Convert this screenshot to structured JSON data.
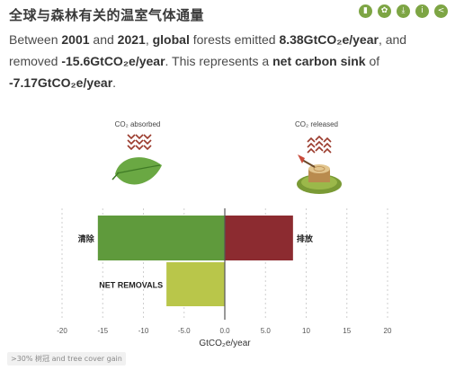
{
  "header": {
    "title": "全球与森林有关的温室气体通量",
    "toolbar": [
      {
        "icon": "book-icon",
        "glyph": "▮"
      },
      {
        "icon": "gear-icon",
        "glyph": "✿"
      },
      {
        "icon": "download-icon",
        "glyph": "⤓"
      },
      {
        "icon": "info-icon",
        "glyph": "i"
      },
      {
        "icon": "share-icon",
        "glyph": "<"
      }
    ]
  },
  "summary": {
    "t1": "Between ",
    "year_start": "2001",
    "t2": " and ",
    "year_end": "2021",
    "t3": ", ",
    "scope": "global",
    "t4": " forests emitted ",
    "emitted": "8.38GtCO₂e/year",
    "t5": ", and removed ",
    "removed": "-15.6GtCO₂e/year",
    "t6": ". This represents a ",
    "sink_label": "net carbon sink",
    "t7": " of ",
    "net": "-7.17GtCO₂e/year",
    "t8": "."
  },
  "illustrations": {
    "absorbed_label": "CO₂ absorbed",
    "released_label": "CO₂ released"
  },
  "chart_data": {
    "type": "bar",
    "orientation": "horizontal",
    "xlabel": "GtCO₂e/year",
    "xlim": [
      -20,
      20
    ],
    "xticks": [
      -20,
      -15,
      -10,
      -5,
      0,
      5,
      10,
      15,
      20
    ],
    "xtick_labels": [
      "-20",
      "-15",
      "-10",
      "-5.0",
      "0.0",
      "5.0",
      "10",
      "15",
      "20"
    ],
    "grid": "vertical dashed",
    "bars": [
      {
        "name": "removals",
        "label": "清除",
        "start": 0,
        "value": -15.6,
        "color": "#5f9a3c",
        "row": 0,
        "label_side": "left"
      },
      {
        "name": "emissions",
        "label": "排放",
        "start": 0,
        "value": 8.38,
        "color": "#8c2b30",
        "row": 0,
        "label_side": "right"
      },
      {
        "name": "net",
        "label": "NET REMOVALS",
        "start": 0,
        "value": -7.17,
        "color": "#b9c64a",
        "row": 1,
        "label_side": "left"
      }
    ]
  },
  "footnote": ">30% 树冠 and tree cover gain",
  "colors": {
    "accent": "#7da544",
    "axis_zero": "#555555"
  }
}
